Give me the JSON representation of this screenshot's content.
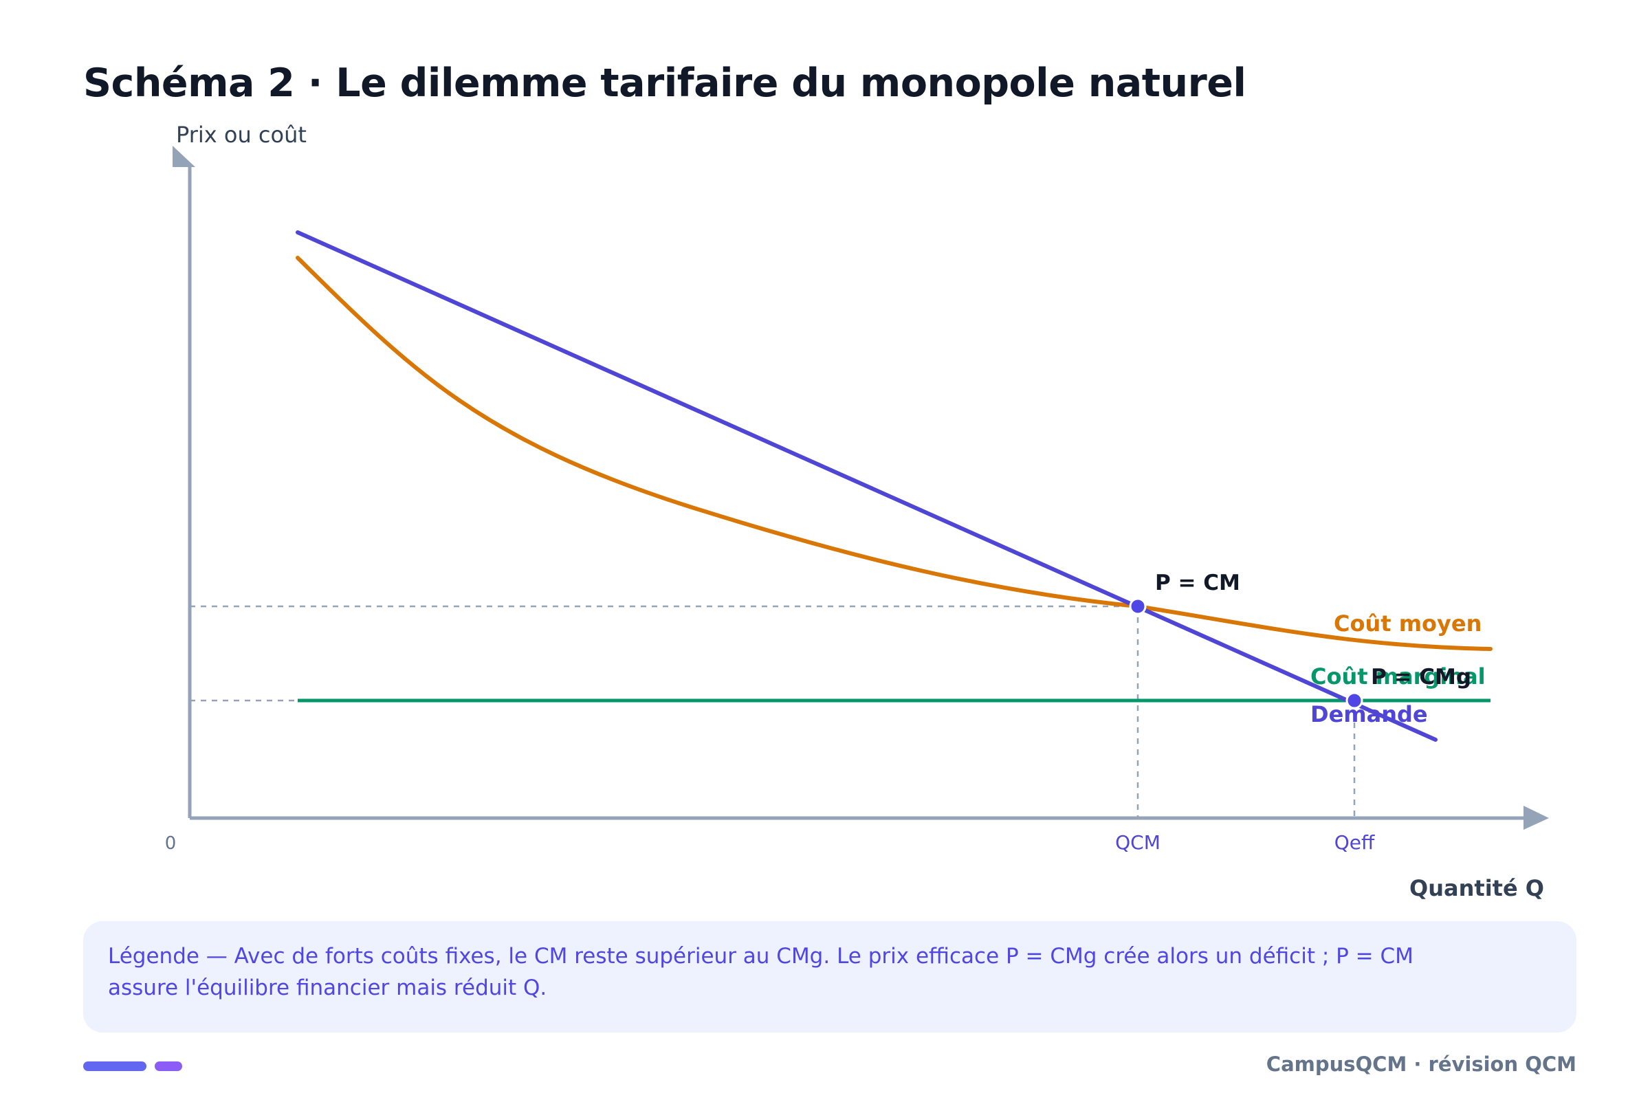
{
  "title": "Schéma 2 · Le dilemme tarifaire du monopole naturel",
  "axes": {
    "y_label": "Prix ou coût",
    "x_label": "Quantité Q",
    "origin": "0"
  },
  "curves": {
    "demand": {
      "label": "Demande",
      "color": "#5046d6"
    },
    "average_cost": {
      "label": "Coût moyen",
      "color": "#d97706"
    },
    "marginal_cost": {
      "label": "Coût marginal",
      "color": "#059669"
    }
  },
  "points": {
    "p_cm": {
      "label": "P = CM",
      "tick": "QCM"
    },
    "p_cmg": {
      "label": "P = CMg",
      "tick": "Qeff"
    }
  },
  "legend_text": "Légende — Avec de forts coûts fixes, le CM reste supérieur au CMg. Le prix efficace P = CMg crée alors un déficit ; P = CM assure l'équilibre financier mais réduit Q.",
  "footer": "CampusQCM · révision QCM",
  "colors": {
    "axis": "#94a3b8",
    "pill_1": "#6366f1",
    "pill_2": "#8b5cf6"
  }
}
